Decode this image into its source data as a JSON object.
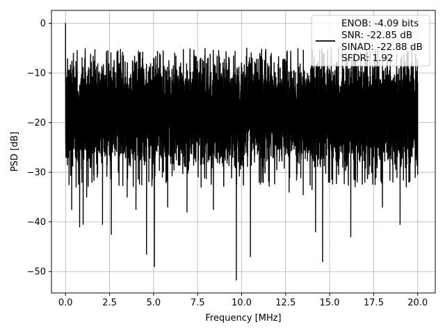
{
  "chart_data": {
    "type": "line",
    "title": "",
    "xlabel": "Frequency [MHz]",
    "ylabel": "PSD [dB]",
    "xlim": [
      -0.8,
      21.0
    ],
    "ylim": [
      -54.3,
      2.6
    ],
    "grid": true,
    "legend_placement": "top-right",
    "line_color": "#000000",
    "x_ticks": [
      {
        "value": 0.0,
        "label": "0.0"
      },
      {
        "value": 2.5,
        "label": "2.5"
      },
      {
        "value": 5.0,
        "label": "5.0"
      },
      {
        "value": 7.5,
        "label": "7.5"
      },
      {
        "value": 10.0,
        "label": "10.0"
      },
      {
        "value": 12.5,
        "label": "12.5"
      },
      {
        "value": 15.0,
        "label": "15.0"
      },
      {
        "value": 17.5,
        "label": "17.5"
      },
      {
        "value": 20.0,
        "label": "20.0"
      }
    ],
    "y_ticks": [
      {
        "value": 0,
        "label": "0"
      },
      {
        "value": -10,
        "label": "−10"
      },
      {
        "value": -20,
        "label": "−20"
      },
      {
        "value": -30,
        "label": "−30"
      },
      {
        "value": -40,
        "label": "−40"
      },
      {
        "value": -50,
        "label": "−50"
      }
    ],
    "legend_lines": [
      "ENOB: -4.09 bits",
      "SNR: -22.85 dB",
      "SINAD: -22.88 dB",
      "SFDR: 1.92"
    ],
    "series": [
      {
        "band": {
          "x_start": 0.0,
          "x_end": 20.0,
          "typical_low": -27,
          "typical_high": -9,
          "center": -18
        },
        "points": [
          [
            0.0,
            0.0
          ],
          [
            0.05,
            -16
          ],
          [
            0.1,
            -12
          ],
          [
            0.15,
            -27
          ],
          [
            0.2,
            -32.5
          ],
          [
            0.3,
            -11.8
          ],
          [
            0.35,
            -37.5
          ],
          [
            0.6,
            -33
          ],
          [
            0.8,
            -41
          ],
          [
            0.9,
            -14
          ],
          [
            1.0,
            -40.5
          ],
          [
            1.2,
            -35
          ],
          [
            1.5,
            -32
          ],
          [
            1.8,
            -31
          ],
          [
            2.1,
            -40.5
          ],
          [
            2.2,
            -10.5
          ],
          [
            2.6,
            -42.5
          ],
          [
            3.0,
            -30
          ],
          [
            3.5,
            -35
          ],
          [
            4.0,
            -37.5
          ],
          [
            4.2,
            -6
          ],
          [
            4.6,
            -46.5
          ],
          [
            5.0,
            -7
          ],
          [
            5.05,
            -49
          ],
          [
            5.5,
            -31
          ],
          [
            5.8,
            -37
          ],
          [
            6.2,
            -6
          ],
          [
            6.5,
            -28.5
          ],
          [
            6.9,
            -38
          ],
          [
            7.3,
            -6.5
          ],
          [
            7.7,
            -33
          ],
          [
            8.1,
            -7
          ],
          [
            8.4,
            -37.5
          ],
          [
            8.8,
            -27
          ],
          [
            9.0,
            -9
          ],
          [
            9.5,
            -27
          ],
          [
            9.7,
            -51.7
          ],
          [
            10.0,
            -8
          ],
          [
            10.5,
            -47
          ],
          [
            11.0,
            -32
          ],
          [
            11.3,
            -7.5
          ],
          [
            12.0,
            -29.5
          ],
          [
            12.2,
            -9
          ],
          [
            12.7,
            -34
          ],
          [
            13.5,
            -34.5
          ],
          [
            14.0,
            -33.5
          ],
          [
            14.2,
            -42
          ],
          [
            14.6,
            -48
          ],
          [
            15.0,
            -32
          ],
          [
            15.3,
            -9.5
          ],
          [
            16.2,
            -43
          ],
          [
            17.0,
            -32
          ],
          [
            17.5,
            -9
          ],
          [
            18.0,
            -37
          ],
          [
            19.0,
            -40.5
          ],
          [
            19.5,
            -32
          ],
          [
            20.0,
            -12
          ],
          [
            20.0,
            -28
          ]
        ]
      }
    ]
  }
}
